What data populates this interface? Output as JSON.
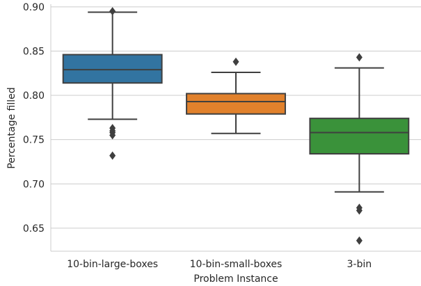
{
  "chart_data": {
    "type": "box",
    "xlabel": "Problem Instance",
    "ylabel": "Percentage filled",
    "ylim": [
      0.624,
      0.903
    ],
    "yticks": [
      0.65,
      0.7,
      0.75,
      0.8,
      0.85,
      0.9
    ],
    "ytick_labels": [
      "0.65",
      "0.70",
      "0.75",
      "0.80",
      "0.85",
      "0.90"
    ],
    "grid": "horizontal",
    "categories": [
      "10-bin-large-boxes",
      "10-bin-small-boxes",
      "3-bin"
    ],
    "boxes": [
      {
        "category": "10-bin-large-boxes",
        "color": "#3274a1",
        "whisker_low": 0.773,
        "q1": 0.814,
        "median": 0.829,
        "q3": 0.846,
        "whisker_high": 0.894,
        "outliers": [
          0.895,
          0.763,
          0.76,
          0.758,
          0.755,
          0.732
        ]
      },
      {
        "category": "10-bin-small-boxes",
        "color": "#e1812c",
        "whisker_low": 0.757,
        "q1": 0.779,
        "median": 0.793,
        "q3": 0.802,
        "whisker_high": 0.826,
        "outliers": [
          0.838
        ]
      },
      {
        "category": "3-bin",
        "color": "#3a923a",
        "whisker_low": 0.691,
        "q1": 0.734,
        "median": 0.758,
        "q3": 0.774,
        "whisker_high": 0.831,
        "outliers": [
          0.843,
          0.673,
          0.67,
          0.636
        ]
      }
    ]
  }
}
